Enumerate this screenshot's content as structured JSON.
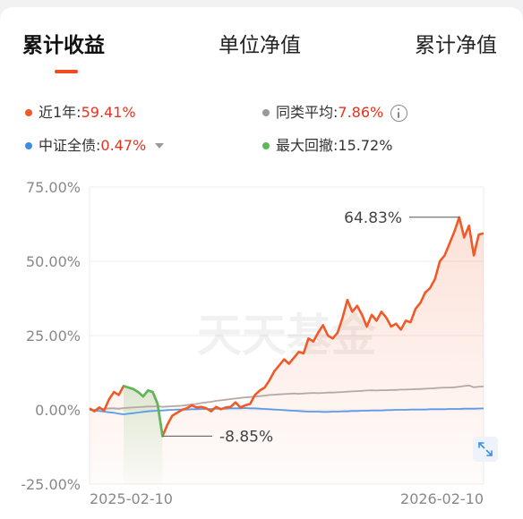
{
  "tabs": {
    "cumulative_return": "累计收益",
    "unit_nav": "单位净值",
    "cumulative_nav": "累计净值"
  },
  "legend": {
    "fund": {
      "label": "近1年:",
      "value": "59.41%",
      "color": "#f05a28"
    },
    "peer_avg": {
      "label": "同类平均:",
      "value": "7.86%",
      "color": "#999999"
    },
    "benchmark": {
      "label": "中证全债:",
      "value": "0.47%",
      "color": "#3a8ee6"
    },
    "max_drawdown": {
      "label": "最大回撤:",
      "value": "15.72%",
      "color": "#5cb85c"
    }
  },
  "watermark": "天天基金",
  "colors": {
    "fund_line": "#f05a28",
    "drawdown_line": "#5cb85c",
    "peer_line": "#b5a9a3",
    "benchmark_line": "#5b9bea",
    "grid": "#ececec",
    "axis_text": "#888888"
  },
  "icons": [
    "info-icon",
    "caret-down-icon",
    "expand-icon"
  ],
  "chart_data": {
    "type": "line",
    "ylim": [
      -25,
      75
    ],
    "y_ticks": [
      "75.00%",
      "50.00%",
      "25.00%",
      "0.00%",
      "-25.00%"
    ],
    "y_tick_values": [
      75,
      50,
      25,
      0,
      -25
    ],
    "x_start": "2025-02-10",
    "x_end": "2026-02-10",
    "x_tick_labels": [
      "2025-02-10",
      "2026-02-10"
    ],
    "max_label": "64.83%",
    "max_value": 64.83,
    "min_label": "-8.85%",
    "min_value": -8.85,
    "drawdown_range": [
      7,
      15
    ],
    "series": [
      {
        "values": [
          0.5,
          -0.5,
          0.8,
          -0.2,
          3.5,
          6.0,
          5.0,
          8.0,
          7.5,
          7.0,
          6.0,
          4.5,
          6.5,
          6.0,
          2.0,
          -8.85,
          -5.0,
          -2.0,
          -1.0,
          0.0,
          0.5,
          1.5,
          0.8,
          1.0,
          0.5,
          -0.5,
          1.0,
          0.2,
          0.8,
          1.0,
          2.5,
          0.8,
          1.5,
          2.0,
          5.0,
          6.5,
          7.5,
          10.0,
          13.0,
          15.0,
          17.0,
          15.5,
          17.5,
          19.5,
          19.0,
          24.0,
          23.0,
          26.0,
          28.5,
          25.0,
          24.0,
          26.0,
          31.0,
          37.0,
          33.0,
          35.0,
          32.0,
          28.0,
          32.0,
          30.0,
          33.0,
          31.0,
          28.0,
          29.0,
          27.0,
          30.0,
          29.5,
          34.0,
          36.0,
          39.5,
          41.0,
          44.0,
          50.0,
          52.0,
          56.0,
          60.0,
          64.83,
          58.0,
          62.0,
          52.0,
          59.0,
          59.41
        ]
      },
      {
        "values": [
          0.0,
          0.0,
          0.3,
          0.3,
          0.5,
          0.5,
          0.4,
          0.6,
          0.7,
          0.8,
          0.9,
          1.0,
          1.1,
          1.1,
          1.2,
          1.0,
          1.1,
          1.2,
          1.3,
          1.4,
          1.6,
          1.8,
          2.0,
          2.3,
          2.5,
          2.7,
          3.0,
          3.2,
          3.4,
          3.6,
          3.8,
          4.0,
          4.2,
          4.3,
          4.5,
          4.6,
          4.8,
          5.0,
          5.1,
          5.2,
          5.3,
          5.4,
          5.5,
          5.4,
          5.5,
          5.6,
          5.7,
          5.6,
          5.7,
          5.8,
          5.8,
          5.9,
          6.0,
          6.1,
          6.2,
          6.3,
          6.4,
          6.5,
          6.6,
          6.5,
          6.6,
          6.6,
          6.7,
          6.7,
          6.8,
          6.8,
          6.9,
          7.0,
          7.0,
          7.1,
          7.2,
          7.3,
          7.4,
          7.5,
          7.5,
          7.6,
          7.8,
          8.0,
          8.2,
          7.6,
          7.8,
          7.86
        ]
      },
      {
        "values": [
          0.0,
          -0.2,
          -0.4,
          -0.6,
          -0.8,
          -1.0,
          -1.3,
          -1.5,
          -1.3,
          -1.1,
          -0.9,
          -0.7,
          -0.5,
          -0.4,
          -0.3,
          -0.2,
          -0.1,
          0.0,
          0.1,
          0.1,
          0.1,
          0.2,
          0.2,
          0.3,
          0.3,
          0.3,
          0.4,
          0.4,
          0.4,
          0.5,
          0.5,
          0.5,
          0.6,
          0.5,
          0.5,
          0.4,
          0.3,
          0.2,
          0.1,
          0.0,
          -0.1,
          -0.2,
          -0.3,
          -0.4,
          -0.5,
          -0.6,
          -0.6,
          -0.6,
          -0.7,
          -0.7,
          -0.6,
          -0.6,
          -0.5,
          -0.5,
          -0.4,
          -0.4,
          -0.3,
          -0.3,
          -0.2,
          -0.2,
          -0.2,
          -0.1,
          -0.1,
          0.0,
          0.0,
          0.0,
          0.1,
          0.1,
          0.1,
          0.1,
          0.2,
          0.2,
          0.2,
          0.2,
          0.3,
          0.3,
          0.3,
          0.4,
          0.4,
          0.4,
          0.45,
          0.47
        ]
      }
    ]
  }
}
